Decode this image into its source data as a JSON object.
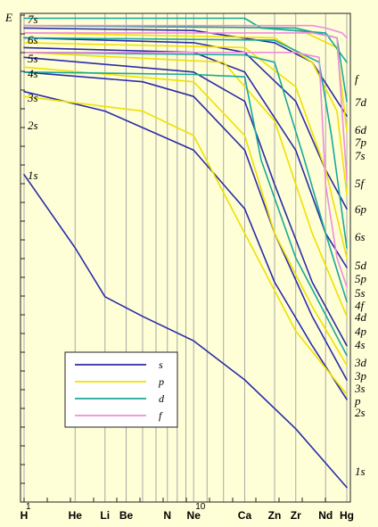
{
  "chart_data": {
    "type": "line",
    "ylabel": "E",
    "x_ticks": [
      {
        "z": 1,
        "label": "H"
      },
      {
        "z": 2,
        "label": "He"
      },
      {
        "z": 3,
        "label": "Li"
      },
      {
        "z": 4,
        "label": "Be"
      },
      {
        "z": 7,
        "label": "N"
      },
      {
        "z": 10,
        "label": "Ne"
      },
      {
        "z": 20,
        "label": "Ca"
      },
      {
        "z": 30,
        "label": "Zn"
      },
      {
        "z": 40,
        "label": "Zr"
      },
      {
        "z": 60,
        "label": "Nd"
      },
      {
        "z": 80,
        "label": "Hg"
      }
    ],
    "x_small_labels": [
      {
        "z": 1,
        "label": "1"
      },
      {
        "z": 10,
        "label": "10"
      }
    ],
    "x_scale": "log",
    "grid": true,
    "legend": {
      "placement": "bottom-left",
      "entries": [
        {
          "label": "s",
          "color": "#2b2ba8"
        },
        {
          "label": "p",
          "color": "#f0e000"
        },
        {
          "label": "d",
          "color": "#19a898"
        },
        {
          "label": "f",
          "color": "#f08ce0"
        }
      ]
    },
    "left_labels": [
      "7s",
      "6s",
      "5s",
      "4s",
      "3s",
      "2s",
      "1s"
    ],
    "right_labels": [
      "f",
      "7d",
      "6d",
      "7p",
      "7s",
      "5f",
      "6p",
      "6s",
      "5d",
      "5p",
      "5s",
      "4f",
      "4d",
      "4p",
      "4s",
      "3d",
      "3p",
      "3s",
      "p",
      "2s",
      "1s"
    ],
    "series": [
      {
        "name": "1s",
        "kind": "s",
        "points": [
          [
            1,
            0.67
          ],
          [
            2,
            0.52
          ],
          [
            3,
            0.42
          ],
          [
            5,
            0.38
          ],
          [
            10,
            0.33
          ],
          [
            20,
            0.25
          ],
          [
            40,
            0.15
          ],
          [
            80,
            0.03
          ]
        ]
      },
      {
        "name": "2s",
        "kind": "s",
        "points": [
          [
            1,
            0.84
          ],
          [
            3,
            0.8
          ],
          [
            10,
            0.72
          ],
          [
            20,
            0.6
          ],
          [
            30,
            0.45
          ],
          [
            50,
            0.32
          ],
          [
            80,
            0.21
          ]
        ]
      },
      {
        "name": "3s",
        "kind": "s",
        "points": [
          [
            1,
            0.88
          ],
          [
            5,
            0.86
          ],
          [
            10,
            0.83
          ],
          [
            20,
            0.72
          ],
          [
            30,
            0.55
          ],
          [
            50,
            0.38
          ],
          [
            80,
            0.25
          ]
        ]
      },
      {
        "name": "4s",
        "kind": "s",
        "points": [
          [
            1,
            0.91
          ],
          [
            10,
            0.88
          ],
          [
            20,
            0.82
          ],
          [
            30,
            0.65
          ],
          [
            50,
            0.45
          ],
          [
            80,
            0.32
          ]
        ]
      },
      {
        "name": "5s",
        "kind": "s",
        "points": [
          [
            1,
            0.93
          ],
          [
            10,
            0.92
          ],
          [
            20,
            0.88
          ],
          [
            40,
            0.72
          ],
          [
            60,
            0.55
          ],
          [
            80,
            0.48
          ]
        ]
      },
      {
        "name": "6s",
        "kind": "s",
        "points": [
          [
            1,
            0.95
          ],
          [
            10,
            0.94
          ],
          [
            20,
            0.92
          ],
          [
            40,
            0.82
          ],
          [
            60,
            0.68
          ],
          [
            80,
            0.6
          ]
        ]
      },
      {
        "name": "7s",
        "kind": "s",
        "points": [
          [
            1,
            0.97
          ],
          [
            10,
            0.965
          ],
          [
            30,
            0.94
          ],
          [
            50,
            0.9
          ],
          [
            80,
            0.79
          ]
        ]
      },
      {
        "name": "2p",
        "kind": "p",
        "points": [
          [
            1,
            0.83
          ],
          [
            5,
            0.8
          ],
          [
            10,
            0.75
          ],
          [
            20,
            0.55
          ],
          [
            40,
            0.35
          ],
          [
            80,
            0.22
          ]
        ]
      },
      {
        "name": "3p",
        "kind": "p",
        "points": [
          [
            1,
            0.89
          ],
          [
            10,
            0.86
          ],
          [
            20,
            0.75
          ],
          [
            30,
            0.55
          ],
          [
            50,
            0.4
          ],
          [
            80,
            0.28
          ]
        ]
      },
      {
        "name": "4p",
        "kind": "p",
        "points": [
          [
            1,
            0.92
          ],
          [
            15,
            0.9
          ],
          [
            30,
            0.78
          ],
          [
            50,
            0.55
          ],
          [
            80,
            0.38
          ]
        ]
      },
      {
        "name": "5p",
        "kind": "p",
        "points": [
          [
            1,
            0.94
          ],
          [
            20,
            0.93
          ],
          [
            40,
            0.85
          ],
          [
            60,
            0.68
          ],
          [
            80,
            0.5
          ]
        ]
      },
      {
        "name": "6p",
        "kind": "p",
        "points": [
          [
            1,
            0.96
          ],
          [
            30,
            0.95
          ],
          [
            50,
            0.9
          ],
          [
            70,
            0.8
          ],
          [
            80,
            0.63
          ]
        ]
      },
      {
        "name": "7p",
        "kind": "p",
        "points": [
          [
            1,
            0.975
          ],
          [
            40,
            0.97
          ],
          [
            70,
            0.93
          ],
          [
            80,
            0.76
          ]
        ]
      },
      {
        "name": "3d",
        "kind": "d",
        "points": [
          [
            1,
            0.88
          ],
          [
            10,
            0.875
          ],
          [
            20,
            0.87
          ],
          [
            25,
            0.7
          ],
          [
            40,
            0.5
          ],
          [
            80,
            0.3
          ]
        ]
      },
      {
        "name": "4d",
        "kind": "d",
        "points": [
          [
            1,
            0.92
          ],
          [
            20,
            0.915
          ],
          [
            30,
            0.9
          ],
          [
            45,
            0.7
          ],
          [
            60,
            0.55
          ],
          [
            80,
            0.41
          ]
        ]
      },
      {
        "name": "5d",
        "kind": "d",
        "points": [
          [
            1,
            0.95
          ],
          [
            30,
            0.945
          ],
          [
            55,
            0.9
          ],
          [
            65,
            0.75
          ],
          [
            80,
            0.52
          ]
        ]
      },
      {
        "name": "6d",
        "kind": "d",
        "points": [
          [
            1,
            0.975
          ],
          [
            40,
            0.97
          ],
          [
            70,
            0.95
          ],
          [
            80,
            0.82
          ]
        ]
      },
      {
        "name": "7d",
        "kind": "d",
        "points": [
          [
            1,
            0.99
          ],
          [
            20,
            0.99
          ],
          [
            25,
            0.97
          ],
          [
            60,
            0.96
          ],
          [
            80,
            0.9
          ]
        ]
      },
      {
        "name": "4f",
        "kind": "f",
        "points": [
          [
            1,
            0.92
          ],
          [
            40,
            0.92
          ],
          [
            55,
            0.91
          ],
          [
            60,
            0.65
          ],
          [
            70,
            0.5
          ],
          [
            80,
            0.44
          ]
        ]
      },
      {
        "name": "5f",
        "kind": "f",
        "points": [
          [
            1,
            0.96
          ],
          [
            50,
            0.96
          ],
          [
            70,
            0.95
          ],
          [
            80,
            0.66
          ]
        ]
      },
      {
        "name": "f",
        "kind": "f",
        "points": [
          [
            1,
            0.975
          ],
          [
            50,
            0.975
          ],
          [
            60,
            0.97
          ],
          [
            75,
            0.96
          ],
          [
            80,
            0.95
          ]
        ]
      }
    ]
  }
}
